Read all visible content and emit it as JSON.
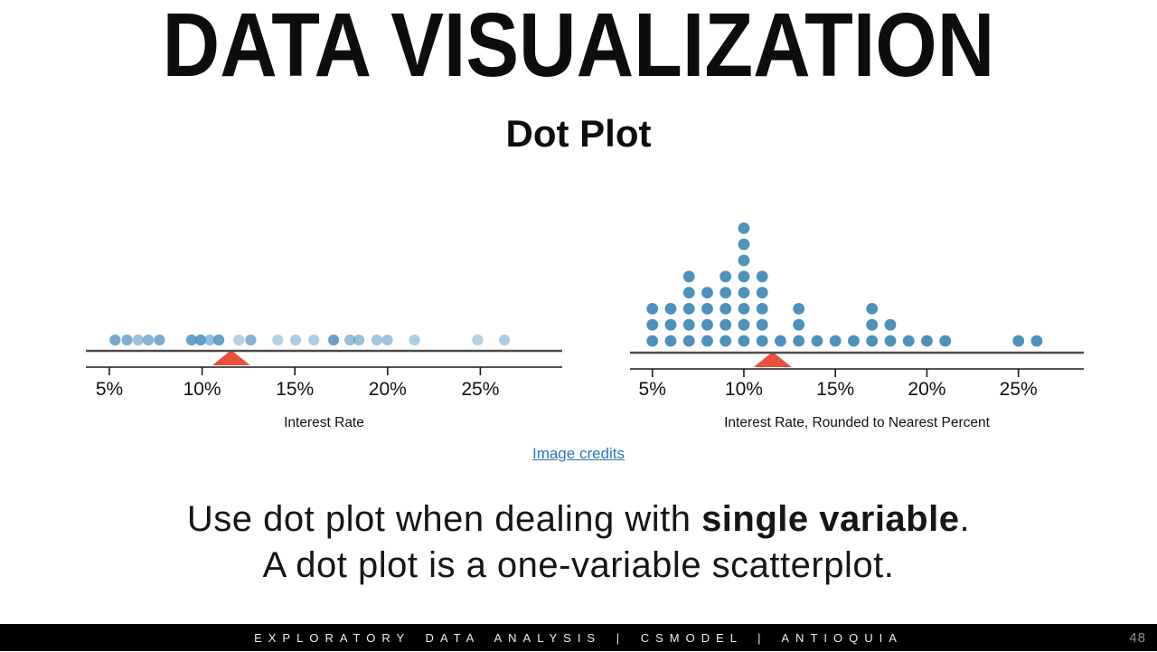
{
  "slide": {
    "title": "DATA VISUALIZATION",
    "subtitle": "Dot Plot",
    "credits_link": "Image credits",
    "body_line1_prefix": "Use dot plot when dealing with ",
    "body_line1_bold": "single variable",
    "body_line1_suffix": ".",
    "body_line2": "A dot plot is a one-variable scatterplot.",
    "footer": "EXPLORATORY DATA ANALYSIS | CSMODEL | ANTIOQUIA",
    "page_number": "48"
  },
  "colors": {
    "dot_blue": "#4F90BD",
    "mean_triangle": "#E8503A",
    "link_blue": "#2E75B6",
    "baseline_gray": "#4d4d4d",
    "axis_black": "#1a1a1a",
    "text_black": "#111111"
  },
  "chart_data": [
    {
      "name": "interest-rate-dot-plot",
      "type": "scatter",
      "subtype": "dot-plot-unstacked",
      "xlabel": "Interest Rate",
      "tick_labels": [
        "5%",
        "10%",
        "15%",
        "20%",
        "25%"
      ],
      "tick_values": [
        5,
        10,
        15,
        20,
        25
      ],
      "xlim": [
        3.7,
        29.5
      ],
      "mean_marker": 11.57,
      "points": [
        {
          "x": 5.31,
          "opacity": 0.78
        },
        {
          "x": 5.95,
          "opacity": 0.72
        },
        {
          "x": 6.55,
          "opacity": 0.55
        },
        {
          "x": 7.1,
          "opacity": 0.68
        },
        {
          "x": 7.7,
          "opacity": 0.75
        },
        {
          "x": 9.43,
          "opacity": 0.85
        },
        {
          "x": 9.92,
          "opacity": 0.88
        },
        {
          "x": 10.42,
          "opacity": 0.6
        },
        {
          "x": 10.9,
          "opacity": 0.85
        },
        {
          "x": 11.98,
          "opacity": 0.42
        },
        {
          "x": 12.62,
          "opacity": 0.68
        },
        {
          "x": 14.08,
          "opacity": 0.42
        },
        {
          "x": 15.04,
          "opacity": 0.46
        },
        {
          "x": 16.02,
          "opacity": 0.46
        },
        {
          "x": 17.09,
          "opacity": 0.85
        },
        {
          "x": 17.97,
          "opacity": 0.58
        },
        {
          "x": 18.45,
          "opacity": 0.58
        },
        {
          "x": 19.42,
          "opacity": 0.52
        },
        {
          "x": 19.99,
          "opacity": 0.52
        },
        {
          "x": 21.45,
          "opacity": 0.46
        },
        {
          "x": 24.85,
          "opacity": 0.42
        },
        {
          "x": 26.3,
          "opacity": 0.46
        }
      ]
    },
    {
      "name": "rounded-interest-rate-dot-plot",
      "type": "scatter",
      "subtype": "dot-plot-stacked",
      "xlabel": "Interest Rate, Rounded to Nearest Percent",
      "tick_labels": [
        "5%",
        "10%",
        "15%",
        "20%",
        "25%"
      ],
      "tick_values": [
        5,
        10,
        15,
        20,
        25
      ],
      "xlim": [
        3.8,
        29.8
      ],
      "mean_marker": 11.57,
      "total_points": 50,
      "stacks": [
        {
          "x": 5,
          "count": 3
        },
        {
          "x": 6,
          "count": 3
        },
        {
          "x": 7,
          "count": 5
        },
        {
          "x": 8,
          "count": 4
        },
        {
          "x": 9,
          "count": 5
        },
        {
          "x": 10,
          "count": 8
        },
        {
          "x": 11,
          "count": 5
        },
        {
          "x": 12,
          "count": 1
        },
        {
          "x": 13,
          "count": 3
        },
        {
          "x": 14,
          "count": 1
        },
        {
          "x": 15,
          "count": 1
        },
        {
          "x": 16,
          "count": 1
        },
        {
          "x": 17,
          "count": 3
        },
        {
          "x": 18,
          "count": 2
        },
        {
          "x": 19,
          "count": 1
        },
        {
          "x": 20,
          "count": 1
        },
        {
          "x": 21,
          "count": 1
        },
        {
          "x": 25,
          "count": 1
        },
        {
          "x": 26,
          "count": 1
        }
      ]
    }
  ]
}
